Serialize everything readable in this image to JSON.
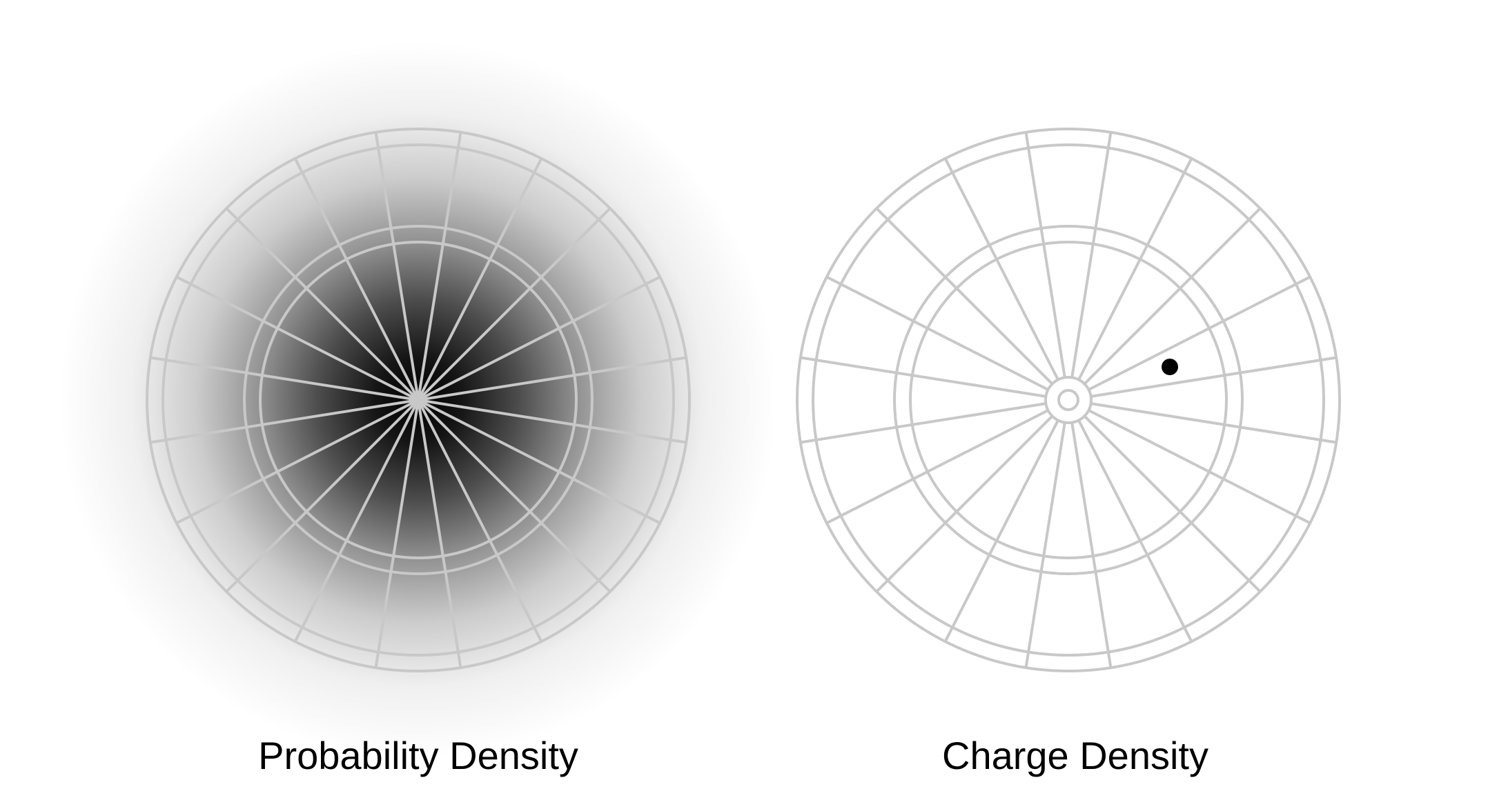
{
  "panels": [
    {
      "id": "probability",
      "caption": "Probability Density",
      "shading": "radial-gradient",
      "shading_color": "#000000",
      "has_bullseye": false,
      "has_electron_dot": false
    },
    {
      "id": "charge",
      "caption": "Charge Density",
      "shading": "none",
      "has_bullseye": true,
      "has_electron_dot": true
    }
  ],
  "colors": {
    "background": "#ffffff",
    "grid_line": "#c8c8c8",
    "ink": "#000000"
  }
}
